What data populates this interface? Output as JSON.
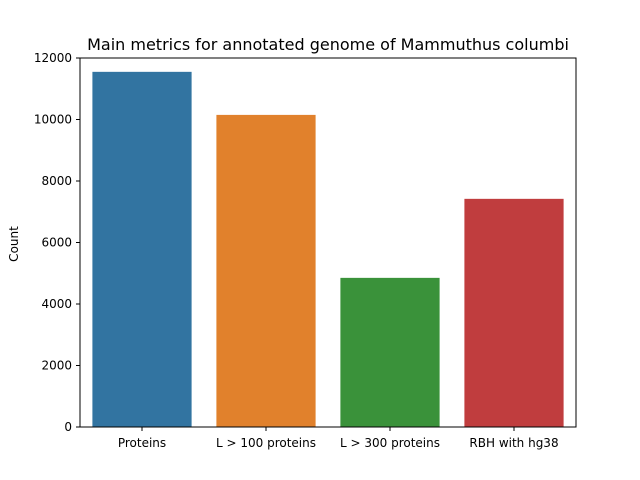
{
  "chart_data": {
    "type": "bar",
    "title": "Main metrics for annotated genome of Mammuthus columbi",
    "xlabel": "",
    "ylabel": "Count",
    "categories": [
      "Proteins",
      "L > 100 proteins",
      "L > 300 proteins",
      "RBH with hg38"
    ],
    "values": [
      11550,
      10150,
      4850,
      7420
    ],
    "colors": [
      "#3274a1",
      "#e1812c",
      "#3a923a",
      "#c03d3e"
    ],
    "ylim": [
      0,
      12000
    ],
    "yticks": [
      0,
      2000,
      4000,
      6000,
      8000,
      10000,
      12000
    ],
    "grid": false,
    "legend": "none"
  }
}
